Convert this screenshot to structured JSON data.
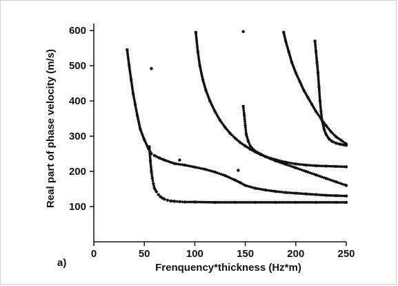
{
  "chart_data": {
    "type": "scatter",
    "panel_label": "a)",
    "xlabel": "Frenquency*thickness (Hz*m)",
    "ylabel": "Real part of phase velocity (m/s)",
    "xlim": [
      0,
      250
    ],
    "ylim": [
      0,
      620
    ],
    "xticks": [
      0,
      50,
      100,
      150,
      200,
      250
    ],
    "yticks": [
      100,
      200,
      300,
      400,
      500,
      600
    ],
    "grid": false,
    "legend": "none",
    "marker_color": "#111111",
    "series": [
      {
        "x": [
          33,
          35,
          37,
          39,
          41,
          43,
          46,
          50,
          54,
          57,
          60,
          65,
          70,
          80,
          90,
          100,
          110,
          120,
          130,
          140,
          145,
          150,
          160,
          170,
          180,
          190,
          200,
          210,
          220,
          230,
          240,
          250
        ],
        "y": [
          545,
          500,
          460,
          420,
          390,
          360,
          320,
          290,
          265,
          250,
          245,
          238,
          232,
          222,
          218,
          212,
          206,
          198,
          188,
          175,
          168,
          160,
          152,
          147,
          143,
          140,
          138,
          136,
          134,
          132,
          131,
          130
        ]
      },
      {
        "x": [
          55,
          56,
          57,
          58,
          59,
          60,
          62,
          64,
          66,
          68,
          70,
          73,
          76,
          80,
          85,
          90,
          100,
          120,
          140,
          160,
          180,
          200,
          220,
          240,
          250
        ],
        "y": [
          270,
          230,
          200,
          180,
          165,
          152,
          142,
          134,
          128,
          124,
          121,
          118,
          116,
          115,
          114,
          113,
          113,
          112,
          112,
          112,
          112,
          112,
          112,
          112,
          112
        ]
      },
      {
        "x": [
          101,
          103,
          105,
          108,
          111,
          115,
          120,
          125,
          130,
          135,
          140,
          145,
          150,
          155,
          160,
          165,
          170,
          180,
          190,
          200,
          210,
          220,
          230,
          240,
          250
        ],
        "y": [
          595,
          540,
          500,
          460,
          430,
          400,
          370,
          345,
          325,
          308,
          294,
          282,
          272,
          263,
          255,
          248,
          242,
          233,
          226,
          221,
          218,
          216,
          215,
          214,
          213
        ]
      },
      {
        "x": [
          148,
          149,
          150,
          151,
          153,
          155,
          158,
          162,
          166,
          170,
          175,
          180,
          190,
          200,
          210,
          220,
          230,
          240,
          250
        ],
        "y": [
          385,
          360,
          330,
          305,
          285,
          272,
          262,
          254,
          248,
          242,
          236,
          230,
          220,
          210,
          200,
          190,
          180,
          170,
          160
        ]
      },
      {
        "x": [
          188,
          190,
          193,
          196,
          200,
          204,
          208,
          212,
          216,
          220,
          225,
          230,
          235,
          240,
          245,
          250
        ],
        "y": [
          595,
          570,
          540,
          510,
          480,
          455,
          430,
          410,
          390,
          370,
          350,
          330,
          312,
          298,
          288,
          278
        ]
      },
      {
        "x": [
          219,
          220,
          221,
          222,
          223,
          224,
          225,
          226,
          228,
          230,
          233,
          236,
          240,
          244,
          248,
          250
        ],
        "y": [
          570,
          540,
          510,
          480,
          440,
          400,
          370,
          345,
          320,
          305,
          292,
          285,
          280,
          277,
          275,
          274
        ]
      },
      {
        "x": [
          33,
          57,
          85,
          143,
          148
        ],
        "y": [
          545,
          492,
          232,
          203,
          597
        ]
      }
    ]
  }
}
